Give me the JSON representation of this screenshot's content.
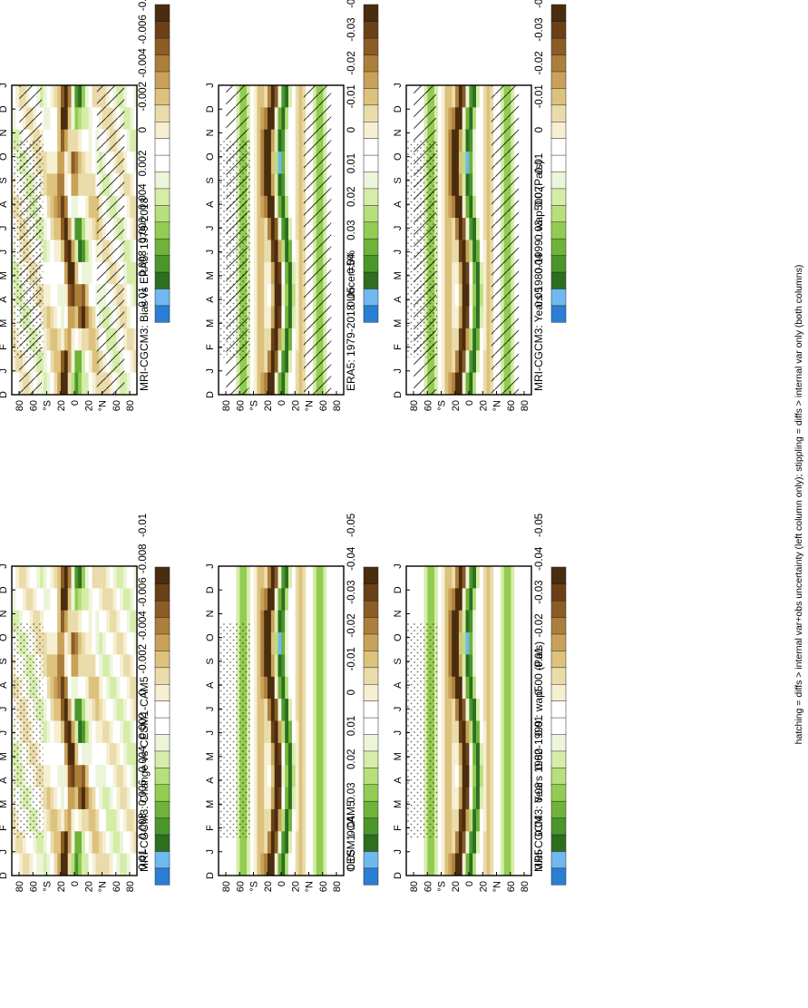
{
  "figure": {
    "footnote": "hatching = diffs > internal var+obs uncertainty (left column only); stippling = diffs > internal var only (both columns)"
  },
  "chart_data": [
    {
      "type": "heatmap",
      "title": "MRI-CGCM3: Years 1980-1999 : wap500 (Pa/s)",
      "x": [
        "D",
        "J",
        "F",
        "M",
        "A",
        "M",
        "J",
        "J",
        "A",
        "S",
        "O",
        "N",
        "D",
        "J"
      ],
      "y": [
        "80",
        "60",
        "°N",
        "20",
        "0",
        "20",
        "°S",
        "60",
        "80"
      ],
      "pattern": "annual",
      "ylim": [
        -90,
        90
      ],
      "hatching": true,
      "stippling": true,
      "colorbar": [
        "0.05",
        "0.04",
        "0.03",
        "0.02",
        "0.01",
        "0",
        "-0.01",
        "-0.02",
        "-0.03",
        "-0.04",
        "-0.05"
      ]
    },
    {
      "type": "heatmap",
      "title": "MRI-CGCM3: Years 1980-1999 : wap500 (Pa/s)",
      "x": [
        "D",
        "J",
        "F",
        "M",
        "A",
        "M",
        "J",
        "J",
        "A",
        "S",
        "O",
        "N",
        "D",
        "J"
      ],
      "y": [
        "80",
        "60",
        "°N",
        "20",
        "0",
        "20",
        "°S",
        "60",
        "80"
      ],
      "pattern": "annual",
      "ylim": [
        -90,
        90
      ],
      "hatching": false,
      "stippling": true,
      "colorbar": [
        "0.05",
        "0.04",
        "0.03",
        "0.02",
        "0.01",
        "0",
        "-0.01",
        "-0.02",
        "-0.03",
        "-0.04",
        "-0.05"
      ]
    },
    {
      "type": "heatmap",
      "title": "ERA5: 1979-2018 Uncer=5%",
      "x": [
        "D",
        "J",
        "F",
        "M",
        "A",
        "M",
        "J",
        "J",
        "A",
        "S",
        "O",
        "N",
        "D",
        "J"
      ],
      "y": [
        "80",
        "60",
        "°N",
        "20",
        "0",
        "20",
        "°S",
        "60",
        "80"
      ],
      "pattern": "annual",
      "ylim": [
        -90,
        90
      ],
      "hatching": true,
      "stippling": true,
      "colorbar": [
        "0.05",
        "0.04",
        "0.03",
        "0.02",
        "0.01",
        "0",
        "-0.01",
        "-0.02",
        "-0.03",
        "-0.04",
        "-0.05"
      ]
    },
    {
      "type": "heatmap",
      "title": "CESM1-CAM5",
      "x": [
        "D",
        "J",
        "F",
        "M",
        "A",
        "M",
        "J",
        "J",
        "A",
        "S",
        "O",
        "N",
        "D",
        "J"
      ],
      "y": [
        "80",
        "60",
        "°N",
        "20",
        "0",
        "20",
        "°S",
        "60",
        "80"
      ],
      "pattern": "annual",
      "ylim": [
        -90,
        90
      ],
      "hatching": false,
      "stippling": true,
      "colorbar": [
        "0.05",
        "0.04",
        "0.03",
        "0.02",
        "0.01",
        "0",
        "-0.01",
        "-0.02",
        "-0.03",
        "-0.04",
        "-0.05"
      ]
    },
    {
      "type": "heatmap",
      "title": "MRI-CGCM3: Bias vs ERA5: 1979-2018",
      "x": [
        "D",
        "J",
        "F",
        "M",
        "A",
        "M",
        "J",
        "J",
        "A",
        "S",
        "O",
        "N",
        "D",
        "J"
      ],
      "y": [
        "80",
        "60",
        "°N",
        "20",
        "0",
        "20",
        "°S",
        "60",
        "80"
      ],
      "pattern": "diff",
      "ylim": [
        -90,
        90
      ],
      "hatching": true,
      "stippling": true,
      "colorbar": [
        "0.01",
        "0.008",
        "0.006",
        "0.004",
        "0.002",
        "0",
        "-0.002",
        "-0.004",
        "-0.006",
        "-0.008",
        "-0.01"
      ]
    },
    {
      "type": "heatmap",
      "title": "MRI-CGCM3: Change vs CESM1-CAM5",
      "x": [
        "D",
        "J",
        "F",
        "M",
        "A",
        "M",
        "J",
        "J",
        "A",
        "S",
        "O",
        "N",
        "D",
        "J"
      ],
      "y": [
        "80",
        "60",
        "°N",
        "20",
        "0",
        "20",
        "°S",
        "60",
        "80"
      ],
      "pattern": "diff",
      "ylim": [
        -90,
        90
      ],
      "hatching": false,
      "stippling": true,
      "colorbar": [
        "0.01",
        "0.008",
        "0.006",
        "0.004",
        "0.002",
        "0",
        "-0.002",
        "-0.004",
        "-0.006",
        "-0.008",
        "-0.01"
      ]
    }
  ]
}
